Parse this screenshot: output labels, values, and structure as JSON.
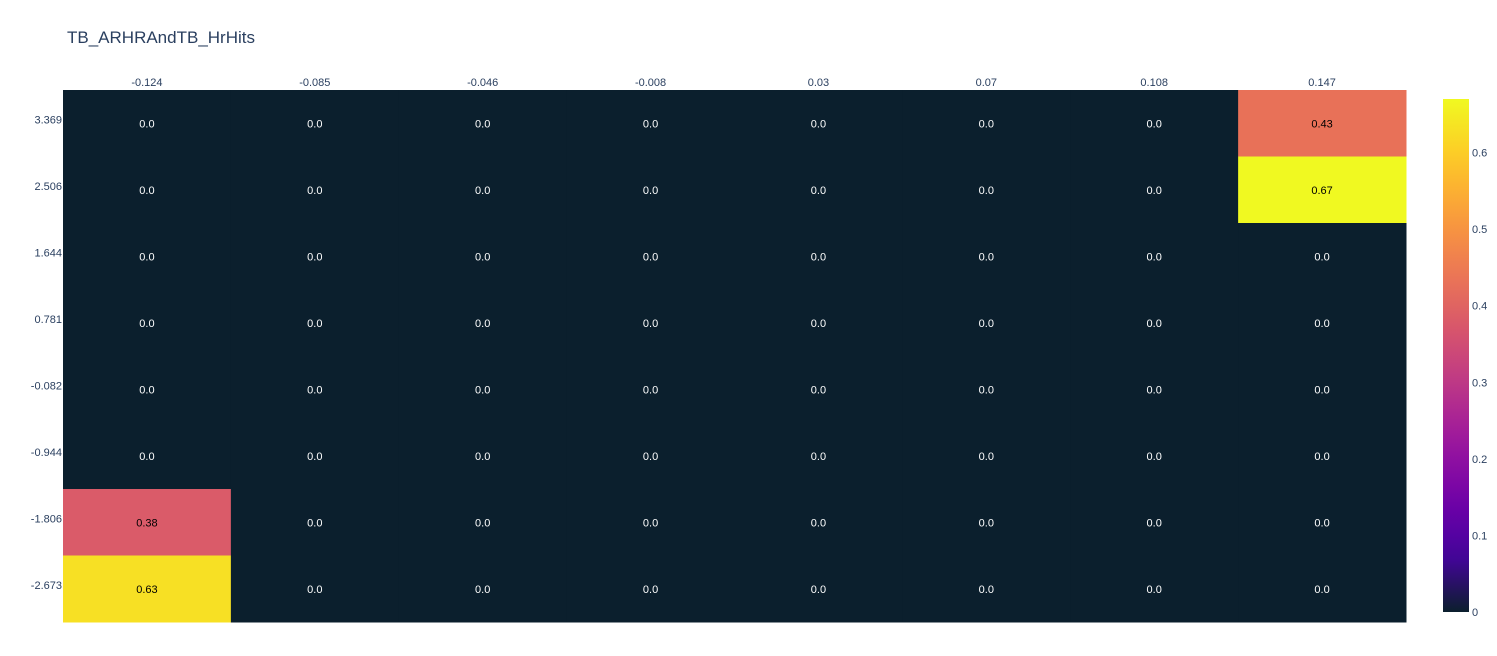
{
  "chart_data": {
    "type": "heatmap",
    "title": "TB_ARHRAndTB_HrHits",
    "x": [
      "-0.124",
      "-0.085",
      "-0.046",
      "-0.008",
      "0.03",
      "0.07",
      "0.108",
      "0.147"
    ],
    "y": [
      "3.369",
      "2.506",
      "1.644",
      "0.781",
      "-0.082",
      "-0.944",
      "-1.806",
      "-2.673"
    ],
    "z": [
      [
        0.0,
        0.0,
        0.0,
        0.0,
        0.0,
        0.0,
        0.0,
        0.43
      ],
      [
        0.0,
        0.0,
        0.0,
        0.0,
        0.0,
        0.0,
        0.0,
        0.67
      ],
      [
        0.0,
        0.0,
        0.0,
        0.0,
        0.0,
        0.0,
        0.0,
        0.0
      ],
      [
        0.0,
        0.0,
        0.0,
        0.0,
        0.0,
        0.0,
        0.0,
        0.0
      ],
      [
        0.0,
        0.0,
        0.0,
        0.0,
        0.0,
        0.0,
        0.0,
        0.0
      ],
      [
        0.0,
        0.0,
        0.0,
        0.0,
        0.0,
        0.0,
        0.0,
        0.0
      ],
      [
        0.38,
        0.0,
        0.0,
        0.0,
        0.0,
        0.0,
        0.0,
        0.0
      ],
      [
        0.63,
        0.0,
        0.0,
        0.0,
        0.0,
        0.0,
        0.0,
        0.0
      ]
    ],
    "text": [
      [
        "0.0",
        "0.0",
        "0.0",
        "0.0",
        "0.0",
        "0.0",
        "0.0",
        "0.43"
      ],
      [
        "0.0",
        "0.0",
        "0.0",
        "0.0",
        "0.0",
        "0.0",
        "0.0",
        "0.67"
      ],
      [
        "0.0",
        "0.0",
        "0.0",
        "0.0",
        "0.0",
        "0.0",
        "0.0",
        "0.0"
      ],
      [
        "0.0",
        "0.0",
        "0.0",
        "0.0",
        "0.0",
        "0.0",
        "0.0",
        "0.0"
      ],
      [
        "0.0",
        "0.0",
        "0.0",
        "0.0",
        "0.0",
        "0.0",
        "0.0",
        "0.0"
      ],
      [
        "0.0",
        "0.0",
        "0.0",
        "0.0",
        "0.0",
        "0.0",
        "0.0",
        "0.0"
      ],
      [
        "0.38",
        "0.0",
        "0.0",
        "0.0",
        "0.0",
        "0.0",
        "0.0",
        "0.0"
      ],
      [
        "0.63",
        "0.0",
        "0.0",
        "0.0",
        "0.0",
        "0.0",
        "0.0",
        "0.0"
      ]
    ],
    "colorscale": "plasma",
    "zrange": [
      0,
      0.67
    ],
    "colorbar_ticks": [
      "0",
      "0.1",
      "0.2",
      "0.3",
      "0.4",
      "0.5",
      "0.6"
    ],
    "colorbar_tickvals": [
      0,
      0.1,
      0.2,
      0.3,
      0.4,
      0.5,
      0.6
    ],
    "x_axis_side": "top"
  }
}
